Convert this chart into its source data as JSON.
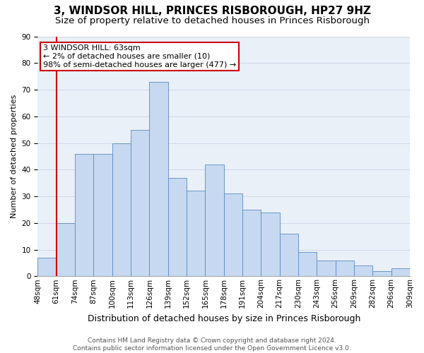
{
  "title": "3, WINDSOR HILL, PRINCES RISBOROUGH, HP27 9HZ",
  "subtitle": "Size of property relative to detached houses in Princes Risborough",
  "xlabel": "Distribution of detached houses by size in Princes Risborough",
  "ylabel": "Number of detached properties",
  "categories": [
    "48sqm",
    "61sqm",
    "74sqm",
    "87sqm",
    "100sqm",
    "113sqm",
    "126sqm",
    "139sqm",
    "152sqm",
    "165sqm",
    "178sqm",
    "191sqm",
    "204sqm",
    "217sqm",
    "230sqm",
    "243sqm",
    "256sqm",
    "269sqm",
    "282sqm",
    "296sqm",
    "309sqm"
  ],
  "bar_values": [
    7,
    20,
    46,
    46,
    50,
    55,
    73,
    37,
    32,
    42,
    31,
    25,
    24,
    16,
    9,
    6,
    6,
    4,
    2,
    3
  ],
  "bar_color": "#c6d9f0",
  "bar_edge_color": "#5b8ac4",
  "grid_color": "#d0d8e8",
  "background_color": "#eaf0f8",
  "vline_color": "#cc0000",
  "annotation_text": "3 WINDSOR HILL: 63sqm\n← 2% of detached houses are smaller (10)\n98% of semi-detached houses are larger (477) →",
  "annotation_box_color": "#cc0000",
  "ylim": [
    0,
    90
  ],
  "yticks": [
    0,
    10,
    20,
    30,
    40,
    50,
    60,
    70,
    80,
    90
  ],
  "footer": "Contains HM Land Registry data © Crown copyright and database right 2024.\nContains public sector information licensed under the Open Government Licence v3.0.",
  "title_fontsize": 11,
  "subtitle_fontsize": 9.5,
  "xlabel_fontsize": 9,
  "ylabel_fontsize": 8,
  "tick_fontsize": 7.5,
  "annotation_fontsize": 8,
  "footer_fontsize": 6.5
}
